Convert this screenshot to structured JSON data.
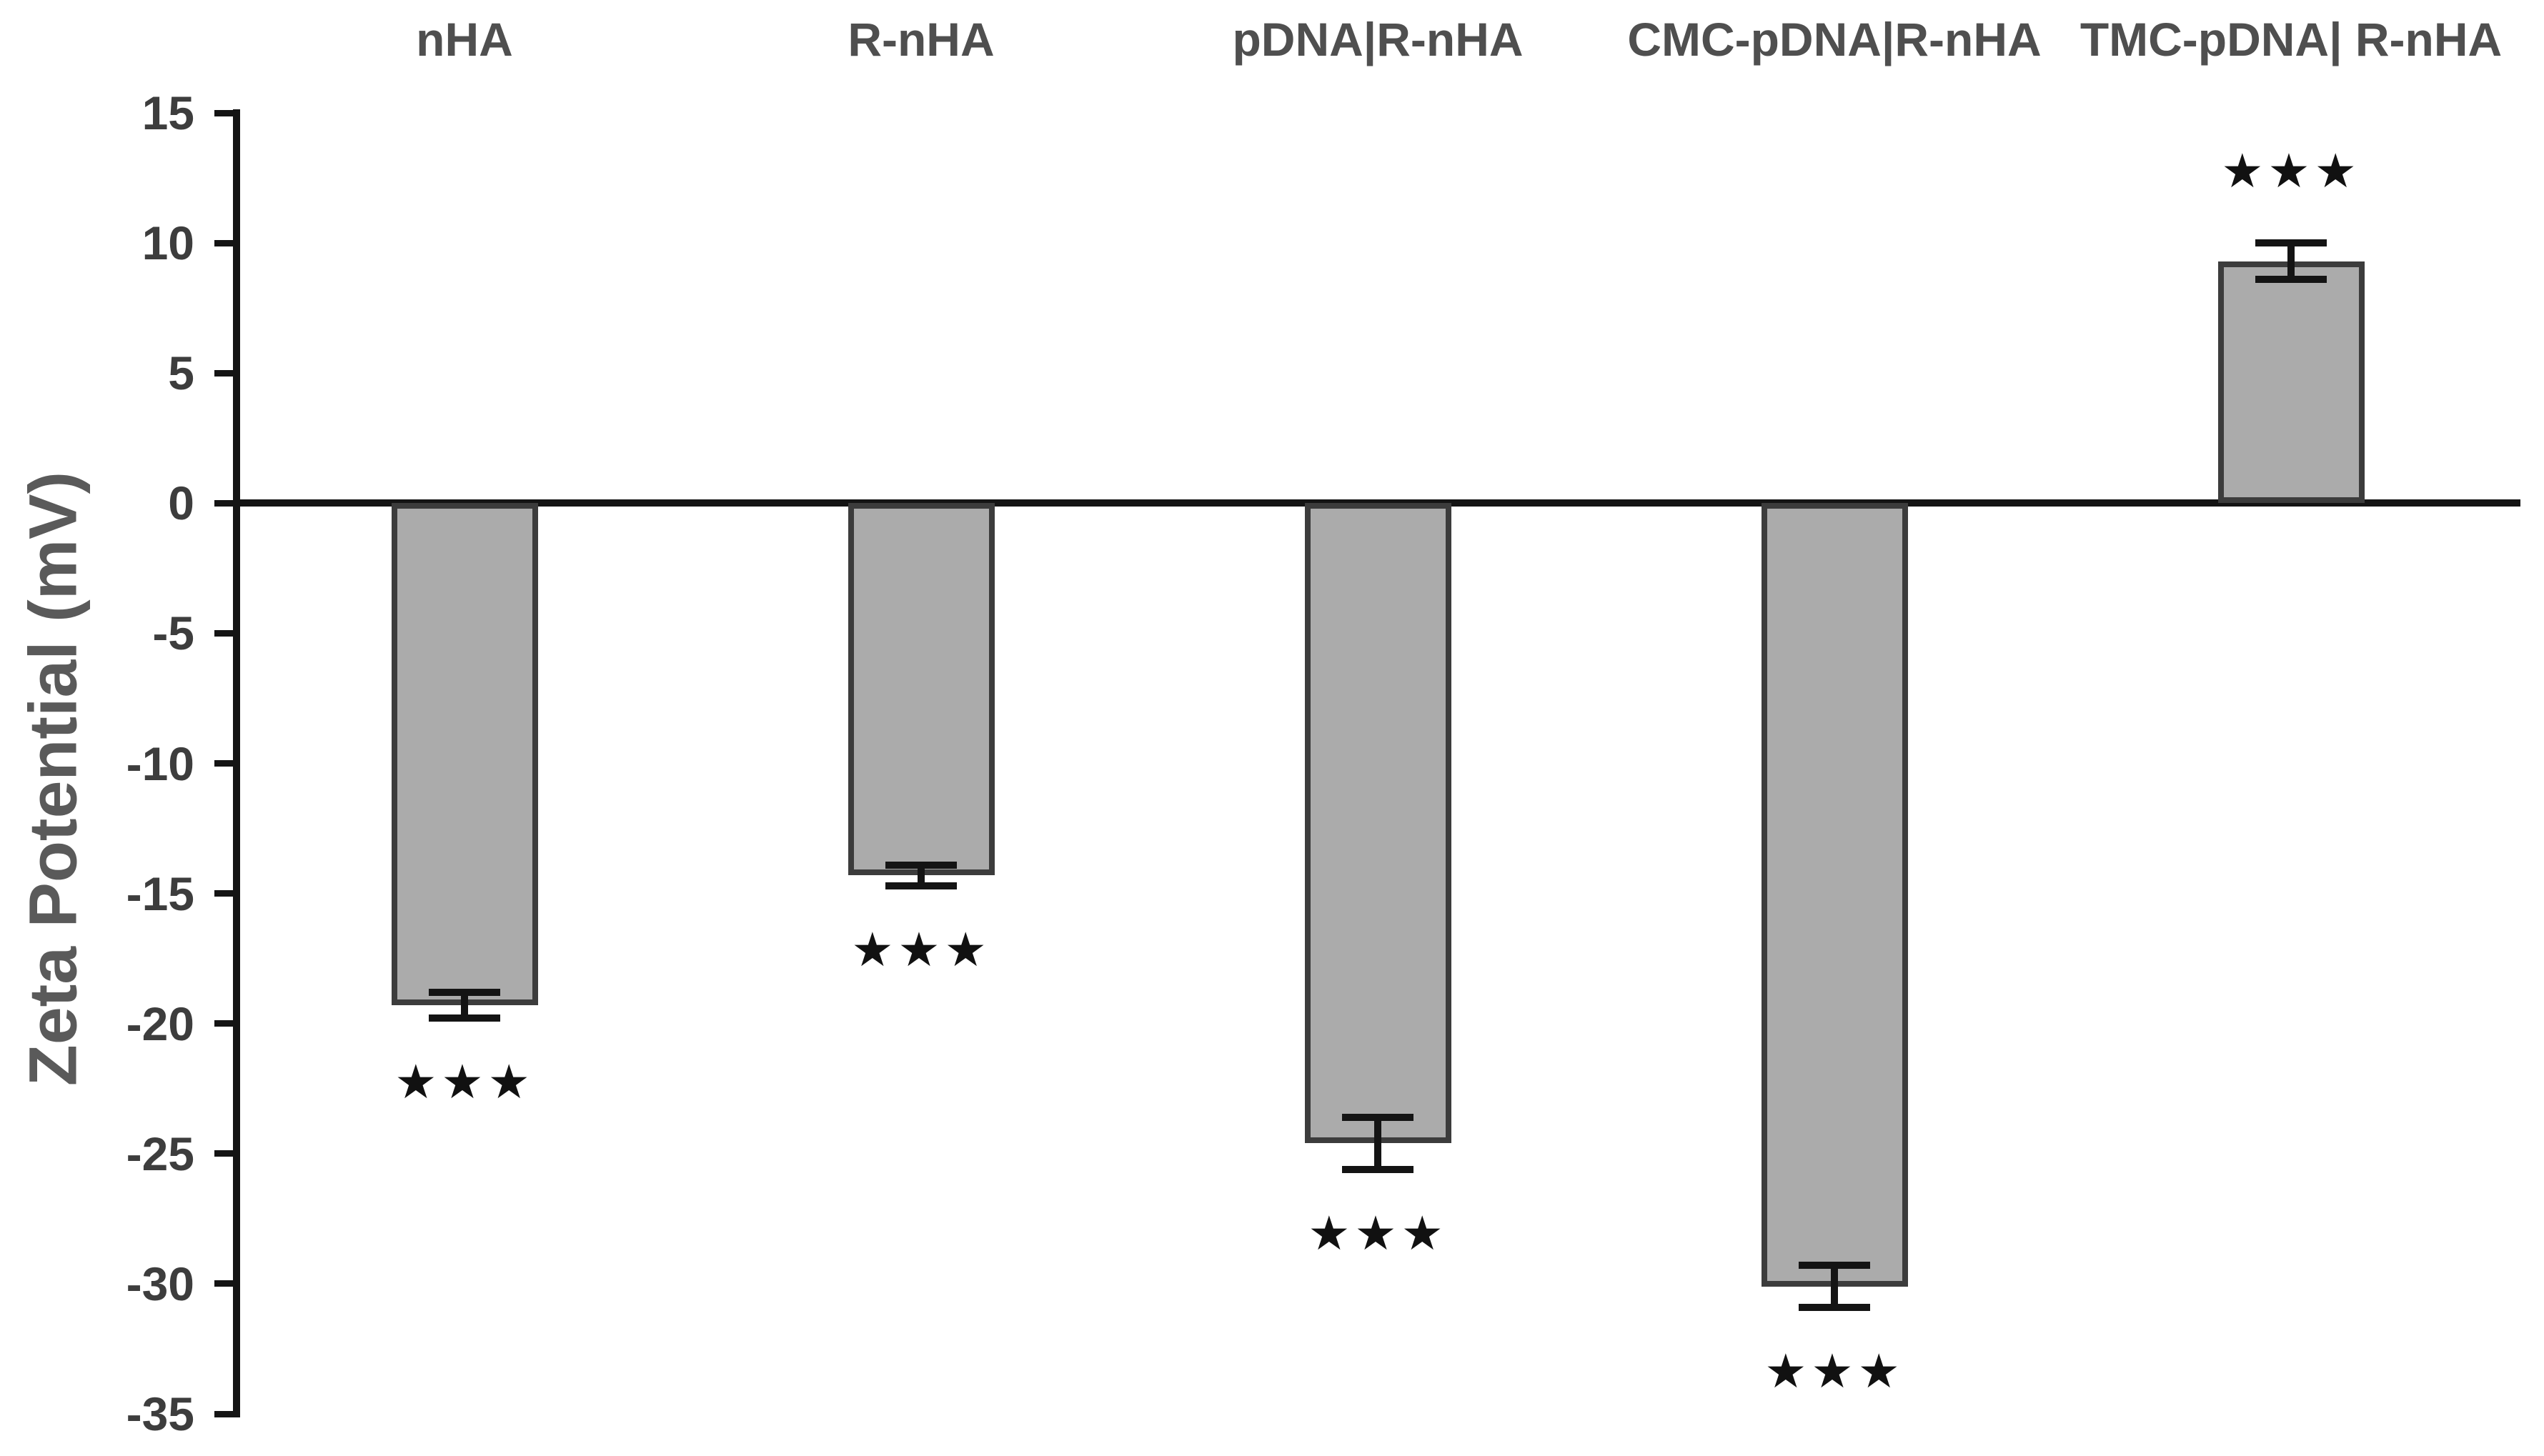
{
  "chart_data": {
    "type": "bar",
    "title": "",
    "xlabel": "",
    "ylabel": "Zeta Potential (mV)",
    "ylim": [
      -35,
      15
    ],
    "ytick_step": 5,
    "ytick_labels": [
      "15",
      "10",
      "5",
      "0",
      "-5",
      "-10",
      "-15",
      "-20",
      "-25",
      "-30",
      "-35"
    ],
    "grid": false,
    "legend": null,
    "categories": [
      "nHA",
      "R-nHA",
      "pDNA|R-nHA",
      "CMC-pDNA|R-nHA",
      "TMC-pDNA| R-nHA"
    ],
    "series": [
      {
        "name": "Zeta Potential (mV)",
        "values": [
          -19.3,
          -14.3,
          -24.6,
          -30.1,
          9.3
        ],
        "errors": [
          0.5,
          0.4,
          1.0,
          0.8,
          0.7
        ]
      }
    ],
    "significance": [
      "***",
      "***",
      "***",
      "***",
      "***"
    ],
    "significance_glyph": "★",
    "colors": {
      "bar_fill": "#ABABAB",
      "bar_border": "#3C3C3C",
      "axis_line": "#141414",
      "error_bar": "#141414",
      "tick_label": "#3D3D3D",
      "category_label": "#4F4F4F",
      "axis_title": "#5A5A5A",
      "stars": "#111111",
      "background": "#FFFFFF"
    }
  }
}
